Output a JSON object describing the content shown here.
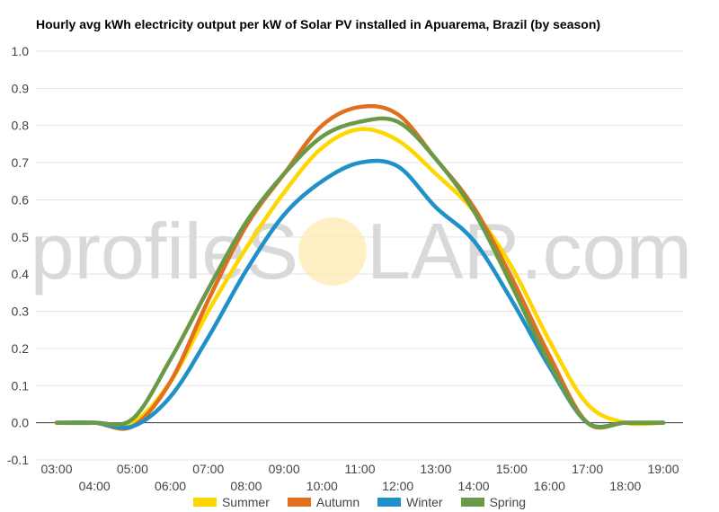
{
  "title": "Hourly avg kWh electricity output per kW of Solar PV installed in Apuarema, Brazil (by season)",
  "watermark": {
    "left": "profileS",
    "right": "LAR.com"
  },
  "chart_data": {
    "type": "line",
    "title": "Hourly avg kWh electricity output per kW of Solar PV installed in Apuarema, Brazil (by season)",
    "xlabel": "",
    "ylabel": "",
    "ylim": [
      -0.1,
      1.0
    ],
    "y_ticks": [
      "1.0",
      "0.9",
      "0.8",
      "0.7",
      "0.6",
      "0.5",
      "0.4",
      "0.3",
      "0.2",
      "0.1",
      "0.0",
      "-0.1"
    ],
    "x": [
      "03:00",
      "04:00",
      "05:00",
      "06:00",
      "07:00",
      "08:00",
      "09:00",
      "10:00",
      "11:00",
      "12:00",
      "13:00",
      "14:00",
      "15:00",
      "16:00",
      "17:00",
      "18:00",
      "19:00"
    ],
    "grid": true,
    "legend_position": "bottom",
    "series": [
      {
        "name": "Summer",
        "color": "#FFD700",
        "values": [
          0.0,
          0.0,
          0.0,
          0.11,
          0.3,
          0.47,
          0.62,
          0.74,
          0.79,
          0.76,
          0.67,
          0.57,
          0.42,
          0.22,
          0.05,
          0.0,
          0.0
        ]
      },
      {
        "name": "Autumn",
        "color": "#E07020",
        "values": [
          0.0,
          0.0,
          -0.01,
          0.11,
          0.33,
          0.53,
          0.67,
          0.8,
          0.85,
          0.83,
          0.71,
          0.58,
          0.39,
          0.18,
          0.0,
          0.0,
          0.0
        ]
      },
      {
        "name": "Winter",
        "color": "#2090C8",
        "values": [
          0.0,
          0.0,
          -0.01,
          0.07,
          0.23,
          0.41,
          0.56,
          0.65,
          0.7,
          0.69,
          0.58,
          0.49,
          0.33,
          0.15,
          0.0,
          0.0,
          0.0
        ]
      },
      {
        "name": "Spring",
        "color": "#6A9A48",
        "values": [
          0.0,
          0.0,
          0.01,
          0.17,
          0.36,
          0.54,
          0.67,
          0.77,
          0.81,
          0.81,
          0.71,
          0.57,
          0.37,
          0.16,
          0.0,
          0.0,
          0.0
        ]
      }
    ]
  }
}
